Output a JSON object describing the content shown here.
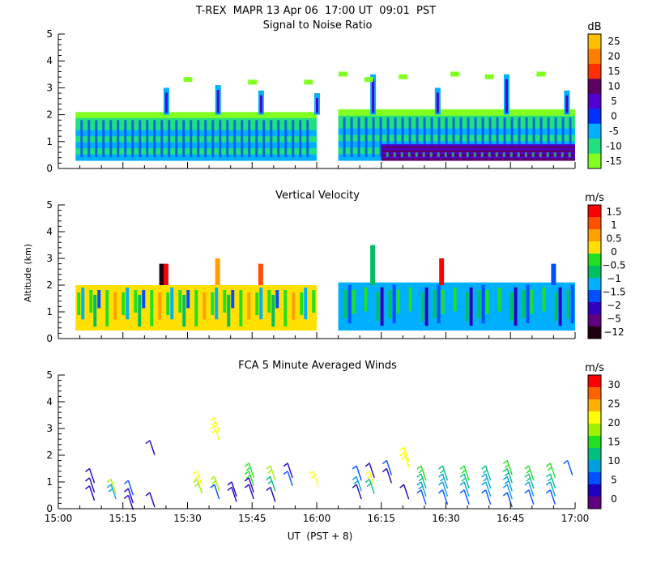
{
  "header": {
    "title": "T-REX  MAPR 13 Apr 06  17:00 UT  09:01  PST"
  },
  "chart_data": [
    {
      "type": "heatmap",
      "title": "Signal to Noise Ratio",
      "xlabel": "",
      "ylabel": "",
      "xlim": [
        "15:00",
        "17:00"
      ],
      "ylim": [
        0,
        5
      ],
      "yticks": [
        "0",
        "1",
        "2",
        "3",
        "4",
        "5"
      ],
      "colorbar": {
        "units": "dB",
        "labels": [
          "25",
          "20",
          "15",
          "10",
          "5",
          "0",
          "-5",
          "-10",
          "-15"
        ],
        "colors": [
          "#ffc000",
          "#ff8000",
          "#ff3000",
          "#600060",
          "#5000d0",
          "#0030ff",
          "#00b0ff",
          "#20e080",
          "#80ff20"
        ]
      },
      "data_gap": [
        "16:00",
        "16:05"
      ],
      "regions": [
        {
          "start": "15:04",
          "end": "16:00",
          "bottom_km": 0.3,
          "top_km": 2.1,
          "value_db": -10
        },
        {
          "start": "16:05",
          "end": "17:00",
          "bottom_km": 0.3,
          "top_km": 2.2,
          "value_db": -5
        },
        {
          "start": "16:15",
          "end": "17:00",
          "bottom_km": 0.3,
          "top_km": 0.9,
          "value_db": 5
        }
      ]
    },
    {
      "type": "heatmap",
      "title": "Vertical Velocity",
      "xlabel": "",
      "ylabel": "Altitude (km)",
      "xlim": [
        "15:00",
        "17:00"
      ],
      "ylim": [
        0,
        5
      ],
      "yticks": [
        "0",
        "1",
        "2",
        "3",
        "4",
        "5"
      ],
      "colorbar": {
        "units": "m/s",
        "labels": [
          "1.5",
          "1",
          "0.5",
          "0",
          "−0.5",
          "−1",
          "−1.5",
          "−2",
          "−5",
          "−12"
        ],
        "colors": [
          "#ff0000",
          "#ff5000",
          "#ffa000",
          "#ffe000",
          "#20e020",
          "#00c060",
          "#00b0ff",
          "#0050ff",
          "#3000c0",
          "#600080",
          "#200010"
        ]
      },
      "data_gap": [
        "16:00",
        "16:05"
      ],
      "regions": [
        {
          "start": "15:04",
          "end": "16:00",
          "bottom_km": 0.3,
          "top_km": 2.0,
          "value_ms": 0.2
        },
        {
          "start": "16:05",
          "end": "17:00",
          "bottom_km": 0.3,
          "top_km": 2.1,
          "value_ms": -1.0
        }
      ]
    },
    {
      "type": "scatter",
      "title": "FCA 5 Minute Averaged Winds",
      "xlabel": "UT  (PST + 8)",
      "ylabel": "",
      "xlim": [
        "15:00",
        "17:00"
      ],
      "ylim": [
        0,
        5
      ],
      "xticks": [
        "15:00",
        "15:15",
        "15:30",
        "15:45",
        "16:00",
        "16:15",
        "16:30",
        "16:45",
        "17:00"
      ],
      "yticks": [
        "0",
        "1",
        "2",
        "3",
        "4",
        "5"
      ],
      "colorbar": {
        "units": "m/s",
        "labels": [
          "30",
          "25",
          "20",
          "15",
          "10",
          "5",
          "0"
        ],
        "colors": [
          "#ff0000",
          "#ff6000",
          "#ffb000",
          "#ffff00",
          "#a0f000",
          "#20e020",
          "#00c080",
          "#00a0e0",
          "#0050ff",
          "#2000c0",
          "#600080"
        ]
      },
      "series": [
        {
          "name": "15:08",
          "time_min": 8,
          "altitudes_km": [
            1.2,
            0.85,
            0.55
          ],
          "speeds_ms": [
            3,
            4,
            3
          ]
        },
        {
          "name": "15:13",
          "time_min": 13,
          "altitudes_km": [
            0.8,
            0.6
          ],
          "speeds_ms": [
            18,
            10
          ]
        },
        {
          "name": "15:17",
          "time_min": 17,
          "altitudes_km": [
            0.75,
            0.45,
            0.2
          ],
          "speeds_ms": [
            5,
            3,
            4
          ]
        },
        {
          "name": "15:22",
          "time_min": 22,
          "altitudes_km": [
            2.25,
            0.3
          ],
          "speeds_ms": [
            3,
            4
          ]
        },
        {
          "name": "15:33",
          "time_min": 33,
          "altitudes_km": [
            1.1,
            0.8
          ],
          "speeds_ms": [
            20,
            18
          ]
        },
        {
          "name": "15:37",
          "time_min": 37,
          "altitudes_km": [
            3.1,
            2.8,
            0.9,
            0.6
          ],
          "speeds_ms": [
            20,
            21,
            19,
            5
          ]
        },
        {
          "name": "15:41",
          "time_min": 41,
          "altitudes_km": [
            0.7,
            0.5
          ],
          "speeds_ms": [
            4,
            3
          ]
        },
        {
          "name": "15:45",
          "time_min": 45,
          "altitudes_km": [
            1.4,
            1.1,
            0.85,
            0.6
          ],
          "speeds_ms": [
            14,
            16,
            4,
            3
          ]
        },
        {
          "name": "15:50",
          "time_min": 50,
          "altitudes_km": [
            1.3,
            0.9,
            0.5
          ],
          "speeds_ms": [
            18,
            13,
            3
          ]
        },
        {
          "name": "15:54",
          "time_min": 54,
          "altitudes_km": [
            1.4,
            1.1
          ],
          "speeds_ms": [
            4,
            5
          ]
        },
        {
          "name": "16:00",
          "time_min": 60,
          "altitudes_km": [
            1.1
          ],
          "speeds_ms": [
            20
          ]
        },
        {
          "name": "16:10",
          "time_min": 70,
          "altitudes_km": [
            1.3,
            0.9,
            0.6
          ],
          "speeds_ms": [
            5,
            10,
            4
          ]
        },
        {
          "name": "16:13",
          "time_min": 73,
          "altitudes_km": [
            1.4,
            1.1,
            0.8
          ],
          "speeds_ms": [
            3,
            20,
            12
          ]
        },
        {
          "name": "16:17",
          "time_min": 77,
          "altitudes_km": [
            1.5,
            1.2
          ],
          "speeds_ms": [
            5,
            4
          ]
        },
        {
          "name": "16:21",
          "time_min": 81,
          "altitudes_km": [
            2.0,
            1.8,
            0.6
          ],
          "speeds_ms": [
            20,
            22,
            4
          ]
        },
        {
          "name": "16:25",
          "time_min": 85,
          "altitudes_km": [
            1.3,
            1.0,
            0.7,
            0.4
          ],
          "speeds_ms": [
            14,
            13,
            10,
            5
          ]
        },
        {
          "name": "16:30",
          "time_min": 90,
          "altitudes_km": [
            1.3,
            1.0,
            0.7,
            0.4
          ],
          "speeds_ms": [
            12,
            10,
            8,
            5
          ]
        },
        {
          "name": "16:35",
          "time_min": 95,
          "altitudes_km": [
            1.3,
            1.0,
            0.7,
            0.4
          ],
          "speeds_ms": [
            14,
            12,
            8,
            5
          ]
        },
        {
          "name": "16:40",
          "time_min": 100,
          "altitudes_km": [
            1.3,
            1.0,
            0.7,
            0.4
          ],
          "speeds_ms": [
            12,
            10,
            9,
            5
          ]
        },
        {
          "name": "16:45",
          "time_min": 105,
          "altitudes_km": [
            1.5,
            1.2,
            0.9,
            0.6,
            0.3
          ],
          "speeds_ms": [
            15,
            13,
            10,
            8,
            5
          ]
        },
        {
          "name": "16:50",
          "time_min": 110,
          "altitudes_km": [
            1.3,
            1.0,
            0.7,
            0.4
          ],
          "speeds_ms": [
            14,
            12,
            9,
            5
          ]
        },
        {
          "name": "16:55",
          "time_min": 115,
          "altitudes_km": [
            1.4,
            1.0,
            0.7,
            0.4
          ],
          "speeds_ms": [
            15,
            12,
            9,
            5
          ]
        },
        {
          "name": "16:59",
          "time_min": 119,
          "altitudes_km": [
            1.5
          ],
          "speeds_ms": [
            5
          ]
        }
      ]
    }
  ]
}
